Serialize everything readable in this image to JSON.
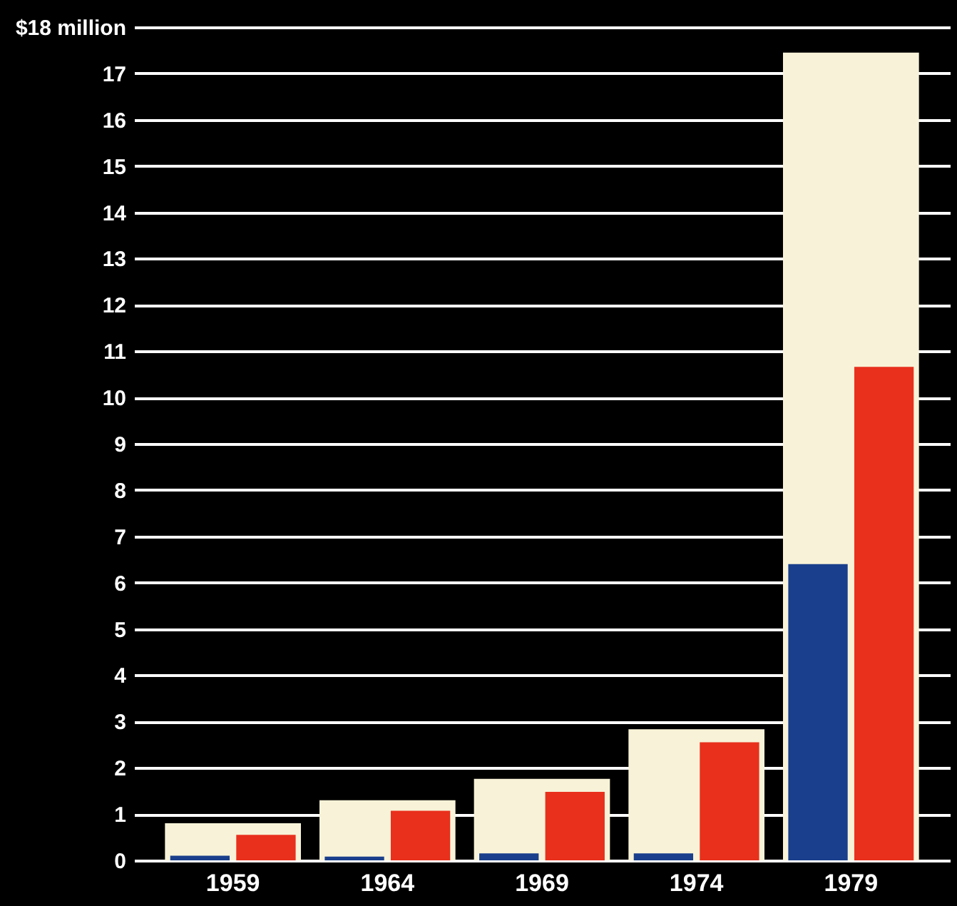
{
  "chart_data": {
    "type": "bar",
    "categories": [
      "1959",
      "1964",
      "1969",
      "1974",
      "1979"
    ],
    "series": [
      {
        "color": "#f8f3d8",
        "values": [
          0.8,
          1.3,
          1.76,
          2.83,
          17.45
        ]
      },
      {
        "color": "#1a3f8c",
        "values": [
          0.1,
          0.08,
          0.15,
          0.15,
          6.4
        ]
      },
      {
        "color": "#e8301c",
        "values": [
          0.55,
          1.07,
          1.48,
          2.55,
          10.66
        ]
      }
    ],
    "ylim": [
      0,
      18
    ],
    "yticks": [
      0,
      1,
      2,
      3,
      4,
      5,
      6,
      7,
      8,
      9,
      10,
      11,
      12,
      13,
      14,
      15,
      16,
      17,
      {
        "value": 18,
        "label": "$18 million"
      }
    ],
    "grid": "y"
  }
}
